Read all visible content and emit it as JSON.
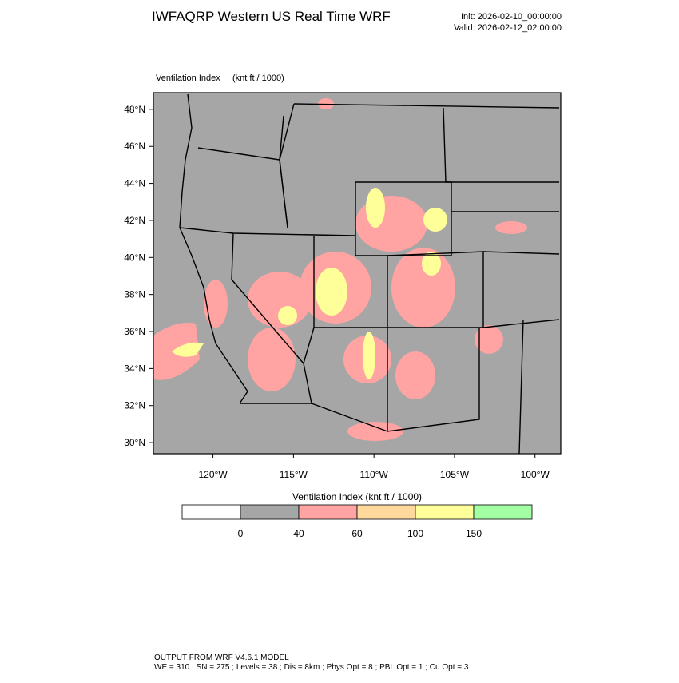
{
  "header": {
    "title": "IWFAQRP Western US Real Time WRF",
    "init": "Init: 2026-02-10_00:00:00",
    "valid": "Valid: 2026-02-12_02:00:00"
  },
  "map": {
    "label": "Ventilation Index",
    "units": "(knt ft / 1000)",
    "xlim": [
      -123.7,
      -98.4
    ],
    "ylim": [
      29.4,
      48.9
    ],
    "xticks": [
      {
        "value": -120,
        "label": "120°W"
      },
      {
        "value": -115,
        "label": "115°W"
      },
      {
        "value": -110,
        "label": "110°W"
      },
      {
        "value": -105,
        "label": "105°W"
      },
      {
        "value": -100,
        "label": "100°W"
      }
    ],
    "yticks": [
      {
        "value": 30,
        "label": "30°N"
      },
      {
        "value": 32,
        "label": "32°N"
      },
      {
        "value": 34,
        "label": "34°N"
      },
      {
        "value": 36,
        "label": "36°N"
      },
      {
        "value": 38,
        "label": "38°N"
      },
      {
        "value": 40,
        "label": "40°N"
      },
      {
        "value": 42,
        "label": "42°N"
      },
      {
        "value": 44,
        "label": "44°N"
      },
      {
        "value": 46,
        "label": "46°N"
      },
      {
        "value": 48,
        "label": "48°N"
      }
    ]
  },
  "colorbar": {
    "title": "Ventilation Index  (knt ft / 1000)",
    "levels": [
      0,
      40,
      60,
      100,
      150
    ],
    "colors": [
      "#ffffff",
      "#a6a6a6",
      "#ffa3a3",
      "#ffd89e",
      "#ffff99",
      "#a3ffa3"
    ]
  },
  "footer": {
    "line1": "OUTPUT FROM WRF V4.6.1 MODEL",
    "line2": "WE = 310 ; SN = 275 ; Levels = 38 ; Dis = 8km ; Phys Opt = 8 ; PBL Opt = 1 ; Cu Opt = 3"
  }
}
